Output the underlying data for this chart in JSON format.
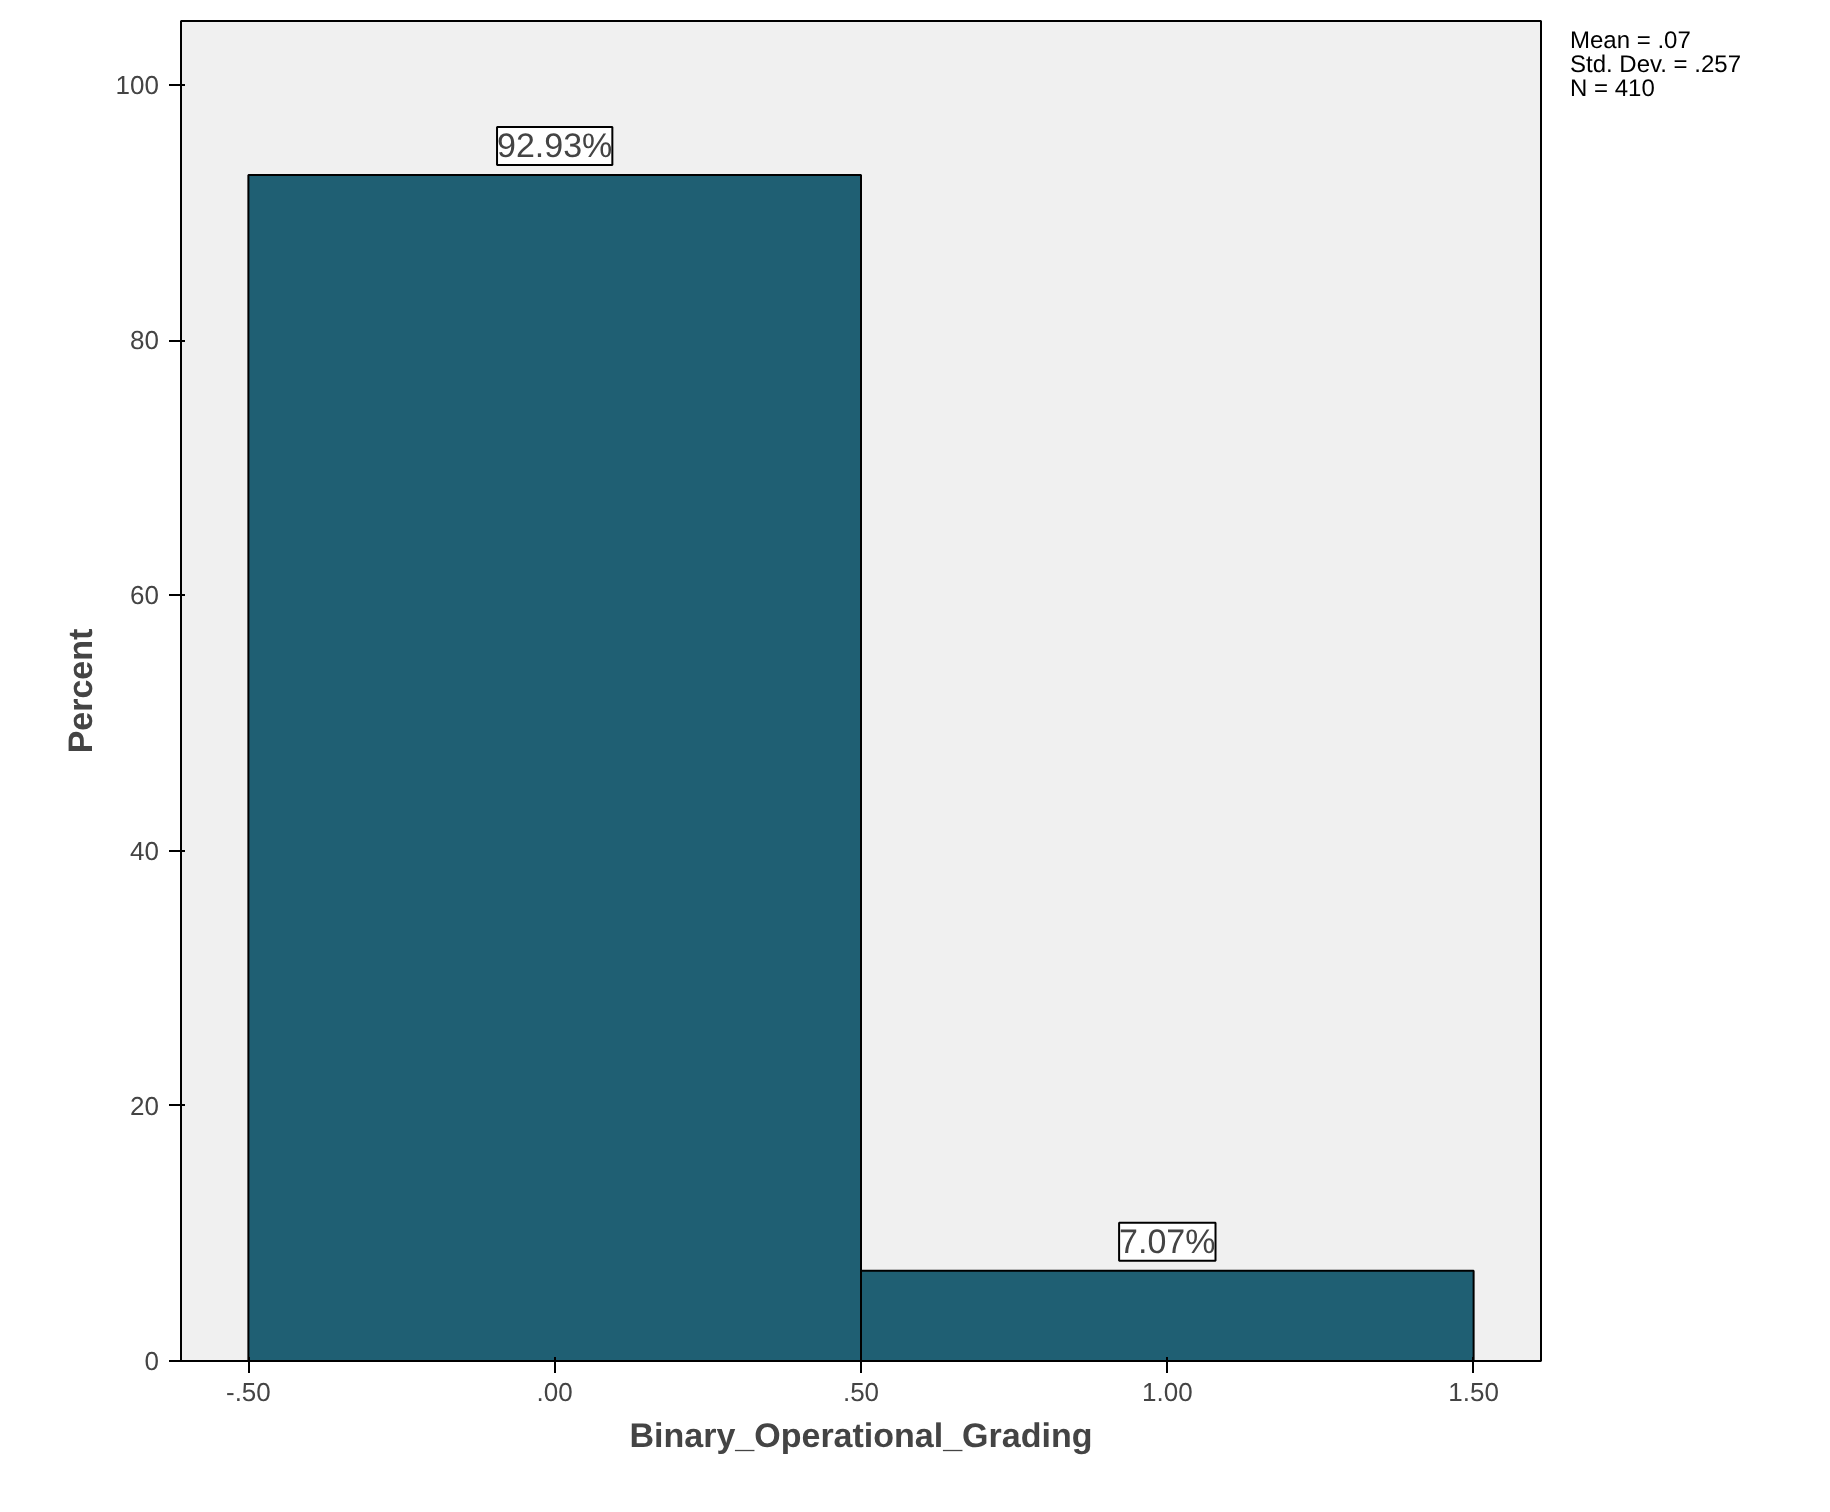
{
  "chart_data": {
    "type": "histogram",
    "xlabel": "Binary_Operational_Grading",
    "ylabel": "Percent",
    "bins": [
      -0.5,
      0.5,
      1.5
    ],
    "values": [
      92.93,
      7.07
    ],
    "color": "#1f5f73",
    "value_labels": [
      "92.93%",
      "7.07%"
    ],
    "xlim": [
      -0.61,
      1.61
    ],
    "ylim": [
      0,
      105
    ],
    "xticks": [
      {
        "value": -0.5,
        "label": "-.50"
      },
      {
        "value": 0,
        "label": ".00"
      },
      {
        "value": 0.5,
        "label": ".50"
      },
      {
        "value": 1,
        "label": "1.00"
      },
      {
        "value": 1.5,
        "label": "1.50"
      }
    ],
    "yticks": [
      0,
      20,
      40,
      60,
      80,
      100
    ],
    "annotations": [
      "Mean = .07",
      "Std. Dev. = .257",
      "N = 410"
    ]
  }
}
